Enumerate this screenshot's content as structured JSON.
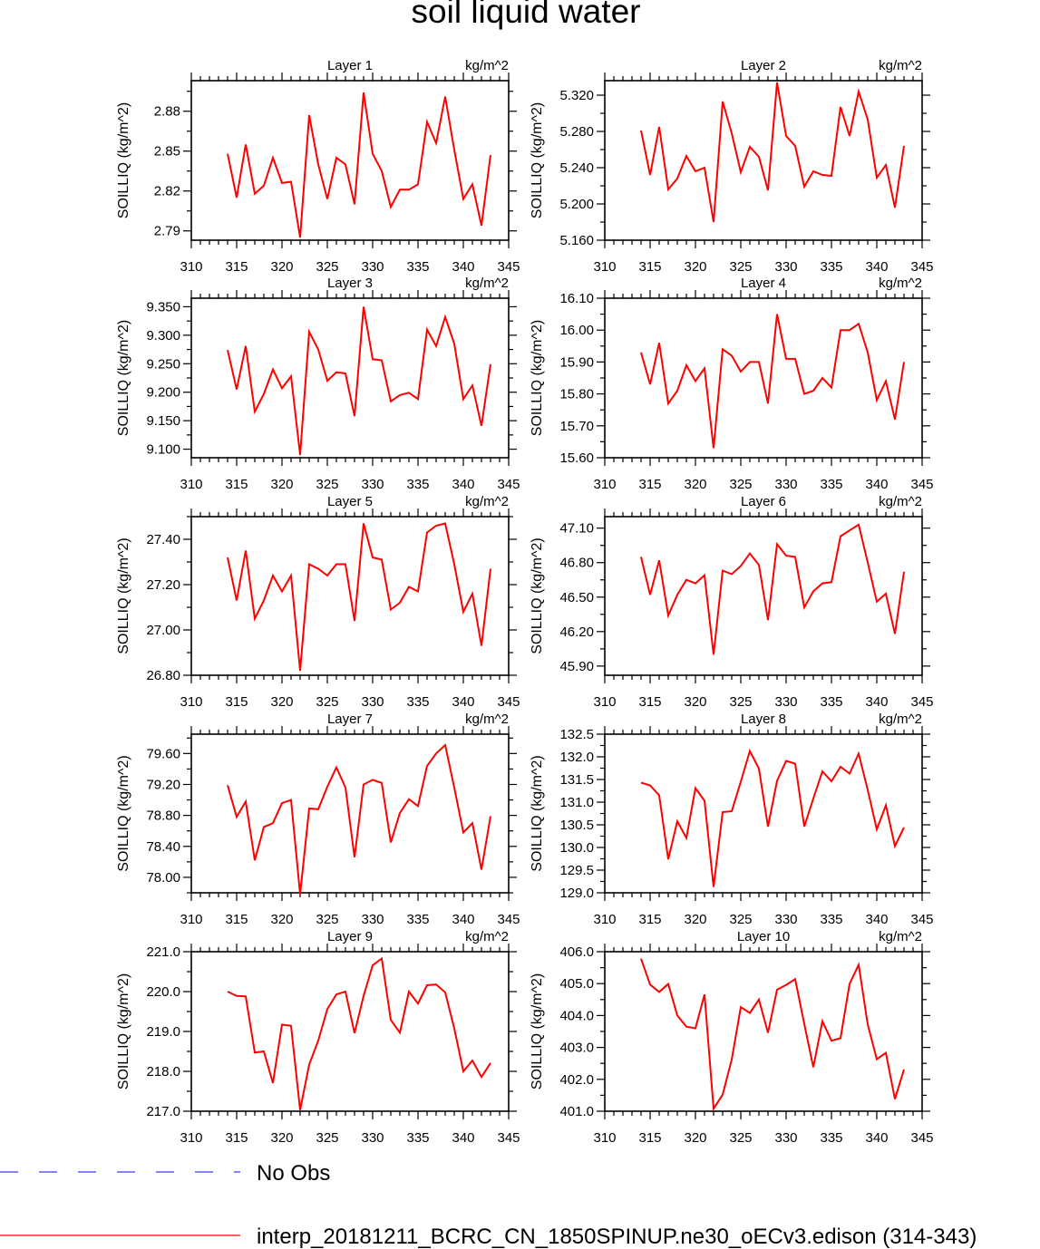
{
  "title": "soil liquid water",
  "colors": {
    "model": "#ff0000",
    "obs": "#3b3bff",
    "axis": "#000000"
  },
  "legend": [
    {
      "label": "No Obs",
      "style": "dashed",
      "color": "#3b3bff"
    },
    {
      "label": "interp_20181211_BCRC_CN_1850SPINUP.ne30_oECv3.edison (314-343)",
      "style": "solid",
      "color": "#ff0000"
    }
  ],
  "chart_data": [
    {
      "type": "line",
      "panel_title": "Layer 1",
      "units": "kg/m^2",
      "ylabel": "SOILLIQ  (kg/m^2)",
      "xlim": [
        310,
        345
      ],
      "xticks": [
        310,
        315,
        320,
        325,
        330,
        335,
        340,
        345
      ],
      "ylim": [
        2.783,
        2.903
      ],
      "yticks": [
        2.79,
        2.82,
        2.85,
        2.88
      ],
      "ytick_labels": [
        "2.79",
        "2.82",
        "2.85",
        "2.88"
      ],
      "x": [
        314,
        315,
        316,
        317,
        318,
        319,
        320,
        321,
        322,
        323,
        324,
        325,
        326,
        327,
        328,
        329,
        330,
        331,
        332,
        333,
        334,
        335,
        336,
        337,
        338,
        339,
        340,
        341,
        342,
        343
      ],
      "y": [
        2.848,
        2.815,
        2.855,
        2.818,
        2.824,
        2.845,
        2.826,
        2.827,
        2.785,
        2.877,
        2.84,
        2.814,
        2.845,
        2.84,
        2.81,
        2.894,
        2.848,
        2.835,
        2.808,
        2.821,
        2.821,
        2.825,
        2.872,
        2.856,
        2.891,
        2.851,
        2.814,
        2.825,
        2.794,
        2.847
      ]
    },
    {
      "type": "line",
      "panel_title": "Layer 2",
      "units": "kg/m^2",
      "ylabel": "SOILLIQ  (kg/m^2)",
      "xlim": [
        310,
        345
      ],
      "xticks": [
        310,
        315,
        320,
        325,
        330,
        335,
        340,
        345
      ],
      "ylim": [
        5.16,
        5.336
      ],
      "yticks": [
        5.16,
        5.2,
        5.24,
        5.28,
        5.32
      ],
      "ytick_labels": [
        "5.160",
        "5.200",
        "5.240",
        "5.280",
        "5.320"
      ],
      "x": [
        314,
        315,
        316,
        317,
        318,
        319,
        320,
        321,
        322,
        323,
        324,
        325,
        326,
        327,
        328,
        329,
        330,
        331,
        332,
        333,
        334,
        335,
        336,
        337,
        338,
        339,
        340,
        341,
        342,
        343
      ],
      "y": [
        5.281,
        5.232,
        5.285,
        5.216,
        5.228,
        5.253,
        5.236,
        5.24,
        5.18,
        5.313,
        5.278,
        5.235,
        5.263,
        5.252,
        5.215,
        5.334,
        5.275,
        5.264,
        5.219,
        5.236,
        5.232,
        5.231,
        5.307,
        5.275,
        5.324,
        5.293,
        5.229,
        5.243,
        5.196,
        5.264
      ]
    },
    {
      "type": "line",
      "panel_title": "Layer 3",
      "units": "kg/m^2",
      "ylabel": "SOILLIQ  (kg/m^2)",
      "xlim": [
        310,
        345
      ],
      "xticks": [
        310,
        315,
        320,
        325,
        330,
        335,
        340,
        345
      ],
      "ylim": [
        9.085,
        9.365
      ],
      "yticks": [
        9.1,
        9.15,
        9.2,
        9.25,
        9.3,
        9.35
      ],
      "ytick_labels": [
        "9.100",
        "9.150",
        "9.200",
        "9.250",
        "9.300",
        "9.350"
      ],
      "x": [
        314,
        315,
        316,
        317,
        318,
        319,
        320,
        321,
        322,
        323,
        324,
        325,
        326,
        327,
        328,
        329,
        330,
        331,
        332,
        333,
        334,
        335,
        336,
        337,
        338,
        339,
        340,
        341,
        342,
        343
      ],
      "y": [
        9.274,
        9.205,
        9.281,
        9.166,
        9.197,
        9.24,
        9.207,
        9.228,
        9.09,
        9.306,
        9.275,
        9.22,
        9.235,
        9.233,
        9.158,
        9.35,
        9.258,
        9.256,
        9.184,
        9.195,
        9.199,
        9.188,
        9.31,
        9.281,
        9.332,
        9.285,
        9.188,
        9.212,
        9.141,
        9.249
      ]
    },
    {
      "type": "line",
      "panel_title": "Layer 4",
      "units": "kg/m^2",
      "ylabel": "SOILLIQ  (kg/m^2)",
      "xlim": [
        310,
        345
      ],
      "xticks": [
        310,
        315,
        320,
        325,
        330,
        335,
        340,
        345
      ],
      "ylim": [
        15.6,
        16.1
      ],
      "yticks": [
        15.6,
        15.7,
        15.8,
        15.9,
        16.0,
        16.1
      ],
      "ytick_labels": [
        "15.60",
        "15.70",
        "15.80",
        "15.90",
        "16.00",
        "16.10"
      ],
      "x": [
        314,
        315,
        316,
        317,
        318,
        319,
        320,
        321,
        322,
        323,
        324,
        325,
        326,
        327,
        328,
        329,
        330,
        331,
        332,
        333,
        334,
        335,
        336,
        337,
        338,
        339,
        340,
        341,
        342,
        343
      ],
      "y": [
        15.93,
        15.83,
        15.96,
        15.77,
        15.81,
        15.89,
        15.84,
        15.88,
        15.63,
        15.94,
        15.92,
        15.87,
        15.9,
        15.9,
        15.77,
        16.05,
        15.91,
        15.91,
        15.8,
        15.81,
        15.85,
        15.82,
        16.0,
        16.0,
        16.02,
        15.93,
        15.78,
        15.84,
        15.72,
        15.9
      ]
    },
    {
      "type": "line",
      "panel_title": "Layer 5",
      "units": "kg/m^2",
      "ylabel": "SOILLIQ  (kg/m^2)",
      "xlim": [
        310,
        345
      ],
      "xticks": [
        310,
        315,
        320,
        325,
        330,
        335,
        340,
        345
      ],
      "ylim": [
        26.8,
        27.5
      ],
      "yticks": [
        26.8,
        27.0,
        27.2,
        27.4
      ],
      "ytick_labels": [
        "26.80",
        "27.00",
        "27.20",
        "27.40"
      ],
      "x": [
        314,
        315,
        316,
        317,
        318,
        319,
        320,
        321,
        322,
        323,
        324,
        325,
        326,
        327,
        328,
        329,
        330,
        331,
        332,
        333,
        334,
        335,
        336,
        337,
        338,
        339,
        340,
        341,
        342,
        343
      ],
      "y": [
        27.32,
        27.13,
        27.35,
        27.05,
        27.13,
        27.24,
        27.17,
        27.24,
        26.82,
        27.29,
        27.27,
        27.24,
        27.29,
        27.29,
        27.04,
        27.47,
        27.32,
        27.31,
        27.09,
        27.12,
        27.19,
        27.17,
        27.43,
        27.46,
        27.47,
        27.29,
        27.08,
        27.16,
        26.93,
        27.27
      ]
    },
    {
      "type": "line",
      "panel_title": "Layer 6",
      "units": "kg/m^2",
      "ylabel": "SOILLIQ  (kg/m^2)",
      "xlim": [
        310,
        345
      ],
      "xticks": [
        310,
        315,
        320,
        325,
        330,
        335,
        340,
        345
      ],
      "ylim": [
        45.82,
        47.2
      ],
      "yticks": [
        45.9,
        46.2,
        46.5,
        46.8,
        47.1
      ],
      "ytick_labels": [
        "45.90",
        "46.20",
        "46.50",
        "46.80",
        "47.10"
      ],
      "x": [
        314,
        315,
        316,
        317,
        318,
        319,
        320,
        321,
        322,
        323,
        324,
        325,
        326,
        327,
        328,
        329,
        330,
        331,
        332,
        333,
        334,
        335,
        336,
        337,
        338,
        339,
        340,
        341,
        342,
        343
      ],
      "y": [
        46.85,
        46.52,
        46.82,
        46.34,
        46.52,
        46.65,
        46.62,
        46.69,
        46.0,
        46.73,
        46.7,
        46.77,
        46.88,
        46.78,
        46.3,
        46.96,
        46.86,
        46.85,
        46.41,
        46.55,
        46.62,
        46.63,
        47.03,
        47.08,
        47.13,
        46.8,
        46.46,
        46.53,
        46.18,
        46.72
      ]
    },
    {
      "type": "line",
      "panel_title": "Layer 7",
      "units": "kg/m^2",
      "ylabel": "SOILLIQ  (kg/m^2)",
      "xlim": [
        310,
        345
      ],
      "xticks": [
        310,
        315,
        320,
        325,
        330,
        335,
        340,
        345
      ],
      "ylim": [
        77.8,
        79.85
      ],
      "yticks": [
        78.0,
        78.4,
        78.8,
        79.2,
        79.6
      ],
      "ytick_labels": [
        "78.00",
        "78.40",
        "78.80",
        "79.20",
        "79.60"
      ],
      "x": [
        314,
        315,
        316,
        317,
        318,
        319,
        320,
        321,
        322,
        323,
        324,
        325,
        326,
        327,
        328,
        329,
        330,
        331,
        332,
        333,
        334,
        335,
        336,
        337,
        338,
        339,
        340,
        341,
        342,
        343
      ],
      "y": [
        79.19,
        78.78,
        78.98,
        78.22,
        78.65,
        78.7,
        78.96,
        79.0,
        77.78,
        78.89,
        78.88,
        79.17,
        79.42,
        79.16,
        78.26,
        79.2,
        79.26,
        79.22,
        78.45,
        78.83,
        79.01,
        78.92,
        79.44,
        79.6,
        79.71,
        79.16,
        78.58,
        78.7,
        78.1,
        78.79
      ]
    },
    {
      "type": "line",
      "panel_title": "Layer 8",
      "units": "kg/m^2",
      "ylabel": "SOILLIQ  (kg/m^2)",
      "xlim": [
        310,
        345
      ],
      "xticks": [
        310,
        315,
        320,
        325,
        330,
        335,
        340,
        345
      ],
      "ylim": [
        129.0,
        132.5
      ],
      "yticks": [
        129.0,
        129.5,
        130.0,
        130.5,
        131.0,
        131.5,
        132.0,
        132.5
      ],
      "ytick_labels": [
        "129.0",
        "129.5",
        "130.0",
        "130.5",
        "131.0",
        "131.5",
        "132.0",
        "132.5"
      ],
      "x": [
        314,
        315,
        316,
        317,
        318,
        319,
        320,
        321,
        322,
        323,
        324,
        325,
        326,
        327,
        328,
        329,
        330,
        331,
        332,
        333,
        334,
        335,
        336,
        337,
        338,
        339,
        340,
        341,
        342,
        343
      ],
      "y": [
        131.43,
        131.37,
        131.15,
        129.74,
        130.58,
        130.21,
        131.31,
        131.03,
        129.13,
        130.78,
        130.8,
        131.45,
        132.13,
        131.74,
        130.46,
        131.47,
        131.91,
        131.85,
        130.46,
        131.08,
        131.68,
        131.46,
        131.78,
        131.63,
        132.07,
        131.27,
        130.4,
        130.93,
        130.03,
        130.44
      ]
    },
    {
      "type": "line",
      "panel_title": "Layer 9",
      "units": "kg/m^2",
      "ylabel": "SOILLIQ  (kg/m^2)",
      "xlim": [
        310,
        345
      ],
      "xticks": [
        310,
        315,
        320,
        325,
        330,
        335,
        340,
        345
      ],
      "ylim": [
        217.0,
        221.0
      ],
      "yticks": [
        217.0,
        218.0,
        219.0,
        220.0,
        221.0
      ],
      "ytick_labels": [
        "217.0",
        "218.0",
        "219.0",
        "220.0",
        "221.0"
      ],
      "x": [
        314,
        315,
        316,
        317,
        318,
        319,
        320,
        321,
        322,
        323,
        324,
        325,
        326,
        327,
        328,
        329,
        330,
        331,
        332,
        333,
        334,
        335,
        336,
        337,
        338,
        339,
        340,
        341,
        342,
        343
      ],
      "y": [
        220.0,
        219.89,
        219.88,
        218.47,
        218.5,
        217.71,
        219.17,
        219.14,
        217.03,
        218.17,
        218.77,
        219.56,
        219.93,
        220.0,
        218.96,
        219.89,
        220.66,
        220.83,
        219.29,
        218.97,
        220.0,
        219.7,
        220.16,
        220.18,
        219.98,
        219.08,
        218.0,
        218.27,
        217.86,
        218.21
      ]
    },
    {
      "type": "line",
      "panel_title": "Layer 10",
      "units": "kg/m^2",
      "ylabel": "SOILLIQ  (kg/m^2)",
      "xlim": [
        310,
        345
      ],
      "xticks": [
        310,
        315,
        320,
        325,
        330,
        335,
        340,
        345
      ],
      "ylim": [
        401.0,
        406.0
      ],
      "yticks": [
        401.0,
        402.0,
        403.0,
        404.0,
        405.0,
        406.0
      ],
      "ytick_labels": [
        "401.0",
        "402.0",
        "403.0",
        "404.0",
        "405.0",
        "406.0"
      ],
      "x": [
        314,
        315,
        316,
        317,
        318,
        319,
        320,
        321,
        322,
        323,
        324,
        325,
        326,
        327,
        328,
        329,
        330,
        331,
        332,
        333,
        334,
        335,
        336,
        337,
        338,
        339,
        340,
        341,
        342,
        343
      ],
      "y": [
        405.78,
        404.97,
        404.74,
        404.99,
        404.0,
        403.65,
        403.6,
        404.66,
        401.08,
        401.52,
        402.62,
        404.26,
        404.08,
        404.5,
        403.46,
        404.81,
        404.96,
        405.14,
        403.74,
        402.38,
        403.82,
        403.21,
        403.29,
        404.99,
        405.59,
        403.72,
        402.63,
        402.83,
        401.38,
        402.31
      ]
    }
  ]
}
